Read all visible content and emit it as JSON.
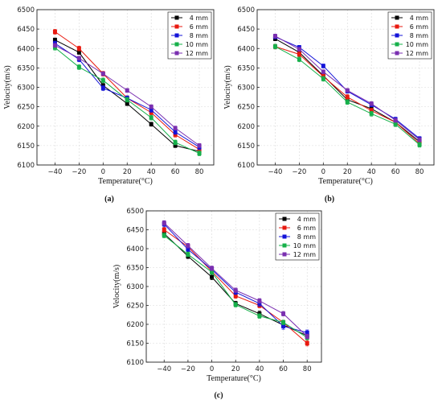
{
  "chart_data": [
    {
      "type": "line",
      "panel": "(a)",
      "xlabel": "Temperature(°C)",
      "ylabel": "Velocity(m/s)",
      "x": [
        -40,
        -20,
        0,
        20,
        40,
        60,
        80
      ],
      "xlim": [
        -55,
        92
      ],
      "ylim": [
        6100,
        6500
      ],
      "yticks": [
        6100,
        6150,
        6200,
        6250,
        6300,
        6350,
        6400,
        6450,
        6500
      ],
      "grid": true,
      "legend_position": "top-right",
      "series": [
        {
          "name": "4 mm",
          "color": "#000000",
          "marker": "square",
          "values": [
            6422,
            6390,
            6305,
            6258,
            6205,
            6150,
            6135
          ],
          "err": [
            5,
            5,
            5,
            5,
            5,
            5,
            5
          ]
        },
        {
          "name": "6 mm",
          "color": "#e8190f",
          "marker": "square",
          "values": [
            6443,
            6400,
            6335,
            6272,
            6235,
            6178,
            6140
          ],
          "err": [
            6,
            6,
            6,
            6,
            6,
            6,
            6
          ]
        },
        {
          "name": "8 mm",
          "color": "#1313d8",
          "marker": "square",
          "values": [
            6413,
            6372,
            6298,
            6272,
            6242,
            6185,
            6146
          ],
          "err": [
            6,
            6,
            6,
            6,
            6,
            6,
            6
          ]
        },
        {
          "name": "10 mm",
          "color": "#16b04a",
          "marker": "square",
          "values": [
            6402,
            6352,
            6318,
            6268,
            6222,
            6158,
            6130
          ],
          "err": [
            6,
            6,
            6,
            6,
            6,
            6,
            6
          ]
        },
        {
          "name": "12 mm",
          "color": "#7a2fb0",
          "marker": "square",
          "values": [
            6408,
            6375,
            6335,
            6292,
            6250,
            6195,
            6150
          ],
          "err": [
            5,
            5,
            5,
            5,
            5,
            5,
            5
          ]
        }
      ]
    },
    {
      "type": "line",
      "panel": "(b)",
      "xlabel": "Temperature(°C)",
      "ylabel": "Velocity(m/s)",
      "x": [
        -40,
        -20,
        0,
        20,
        40,
        60,
        80
      ],
      "xlim": [
        -55,
        92
      ],
      "ylim": [
        6100,
        6500
      ],
      "yticks": [
        6100,
        6150,
        6200,
        6250,
        6300,
        6350,
        6400,
        6450,
        6500
      ],
      "grid": true,
      "legend_position": "top-right",
      "series": [
        {
          "name": "4 mm",
          "color": "#000000",
          "marker": "square",
          "values": [
            6425,
            6390,
            6330,
            6268,
            6245,
            6210,
            6160
          ],
          "err": [
            5,
            5,
            5,
            5,
            5,
            5,
            5
          ]
        },
        {
          "name": "6 mm",
          "color": "#e8190f",
          "marker": "square",
          "values": [
            6405,
            6385,
            6328,
            6275,
            6240,
            6210,
            6155
          ],
          "err": [
            6,
            6,
            6,
            6,
            6,
            6,
            6
          ]
        },
        {
          "name": "8 mm",
          "color": "#1313d8",
          "marker": "square",
          "values": [
            6430,
            6403,
            6355,
            6290,
            6255,
            6218,
            6168
          ],
          "err": [
            5,
            5,
            5,
            5,
            5,
            5,
            5
          ]
        },
        {
          "name": "10 mm",
          "color": "#16b04a",
          "marker": "square",
          "values": [
            6405,
            6372,
            6322,
            6262,
            6232,
            6205,
            6152
          ],
          "err": [
            6,
            6,
            6,
            6,
            6,
            6,
            6
          ]
        },
        {
          "name": "12 mm",
          "color": "#7a2fb0",
          "marker": "square",
          "values": [
            6432,
            6398,
            6340,
            6292,
            6258,
            6215,
            6165
          ],
          "err": [
            5,
            5,
            5,
            5,
            5,
            5,
            5
          ]
        }
      ]
    },
    {
      "type": "line",
      "panel": "(c)",
      "xlabel": "Temperature(°C)",
      "ylabel": "Velocity(m/s)",
      "x": [
        -40,
        -20,
        0,
        20,
        40,
        60,
        80
      ],
      "xlim": [
        -55,
        92
      ],
      "ylim": [
        6100,
        6500
      ],
      "yticks": [
        6100,
        6150,
        6200,
        6250,
        6300,
        6350,
        6400,
        6450,
        6500
      ],
      "grid": true,
      "legend_position": "top-right",
      "series": [
        {
          "name": "4 mm",
          "color": "#000000",
          "marker": "square",
          "values": [
            6440,
            6380,
            6325,
            6255,
            6228,
            6198,
            6170
          ],
          "err": [
            6,
            6,
            7,
            6,
            7,
            7,
            6
          ]
        },
        {
          "name": "6 mm",
          "color": "#e8190f",
          "marker": "square",
          "values": [
            6450,
            6405,
            6340,
            6275,
            6250,
            6205,
            6150
          ],
          "err": [
            6,
            6,
            6,
            6,
            6,
            6,
            7
          ]
        },
        {
          "name": "8 mm",
          "color": "#1313d8",
          "marker": "square",
          "values": [
            6465,
            6398,
            6345,
            6285,
            6255,
            6195,
            6178
          ],
          "err": [
            7,
            6,
            6,
            6,
            7,
            8,
            7
          ]
        },
        {
          "name": "10 mm",
          "color": "#16b04a",
          "marker": "square",
          "values": [
            6435,
            6385,
            6338,
            6252,
            6222,
            6205,
            6165
          ],
          "err": [
            6,
            6,
            6,
            6,
            6,
            6,
            6
          ]
        },
        {
          "name": "12 mm",
          "color": "#7a2fb0",
          "marker": "square",
          "values": [
            6468,
            6408,
            6348,
            6290,
            6262,
            6228,
            6168
          ],
          "err": [
            6,
            6,
            6,
            6,
            6,
            6,
            6
          ]
        }
      ]
    }
  ]
}
